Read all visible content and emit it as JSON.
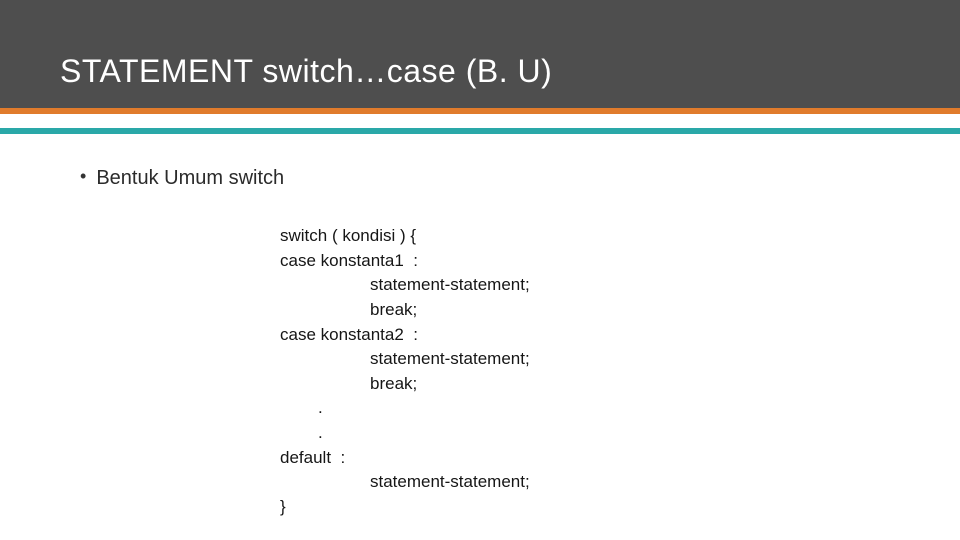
{
  "header": {
    "title": "STATEMENT switch…case (B. U)",
    "bg_color": "#4e4e4e",
    "title_color": "#ffffff",
    "title_fontsize": 32
  },
  "divider": {
    "orange_color": "#e07b2c",
    "teal_color": "#2aa8a8",
    "orange_height": 6,
    "teal_height": 6,
    "gap": 14
  },
  "bullet": {
    "marker": "•",
    "text": "Bentuk Umum switch",
    "fontsize": 20,
    "color": "#2b2b2b"
  },
  "code": {
    "font_family": "Arial",
    "fontsize": 17,
    "color": "#161616",
    "background": "#ffffff",
    "lines": [
      {
        "text": "switch ( kondisi ) {",
        "indent": "ind1"
      },
      {
        "text": "case konstanta1  :",
        "indent": "ind1"
      },
      {
        "text": "statement-statement;",
        "indent": "ind2"
      },
      {
        "text": "break;",
        "indent": "ind2"
      },
      {
        "text": "case konstanta2  :",
        "indent": "ind1"
      },
      {
        "text": "statement-statement;",
        "indent": "ind2"
      },
      {
        "text": "break;",
        "indent": "ind2"
      },
      {
        "text": ".",
        "indent": "ind3"
      },
      {
        "text": ".",
        "indent": "ind3"
      },
      {
        "text": "default  :",
        "indent": "ind1"
      },
      {
        "text": "statement-statement;",
        "indent": "ind2"
      },
      {
        "text": "}",
        "indent": "ind1"
      }
    ]
  }
}
